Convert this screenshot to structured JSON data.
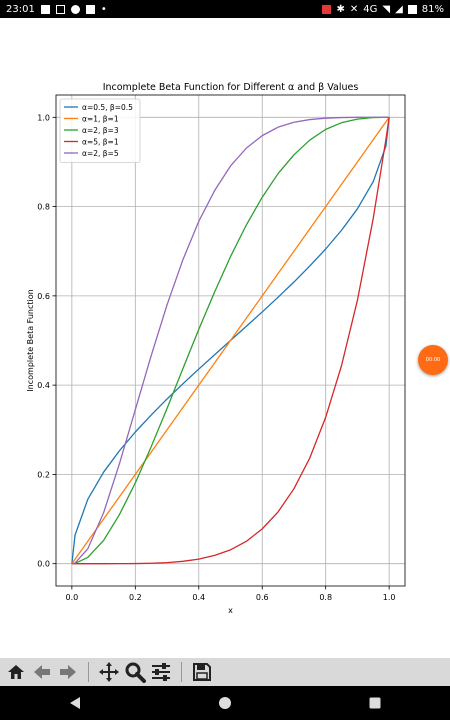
{
  "status_bar": {
    "time": "23:01",
    "battery": "81%",
    "network": "4G",
    "left_icons": [
      "facebook-icon",
      "gmail-icon",
      "youtube-icon",
      "file-icon",
      "dot-icon"
    ],
    "right_icons": [
      "nfc-icon",
      "bluetooth-icon",
      "mute-icon",
      "wifi-icon",
      "signal-icon",
      "battery-icon"
    ]
  },
  "fab": {
    "label": "00:00",
    "color": "#ff6a14"
  },
  "toolbar": {
    "buttons": [
      "home-icon",
      "back-arrow-icon",
      "forward-arrow-icon",
      "pan-icon",
      "zoom-icon",
      "configure-icon",
      "save-icon"
    ]
  },
  "nav_bar": {
    "buttons": [
      "back-triangle-icon",
      "home-circle-icon",
      "recents-square-icon"
    ]
  },
  "chart_data": {
    "type": "line",
    "title": "Incomplete Beta Function for Different α and β Values",
    "xlabel": "x",
    "ylabel": "Incomplete Beta Function",
    "xlim": [
      -0.05,
      1.05
    ],
    "ylim": [
      -0.05,
      1.05
    ],
    "xticks": [
      0.0,
      0.2,
      0.4,
      0.6,
      0.8,
      1.0
    ],
    "xtick_labels": [
      "0.0",
      "0.2",
      "0.4",
      "0.6",
      "0.8",
      "1.0"
    ],
    "yticks": [
      0.0,
      0.2,
      0.4,
      0.6,
      0.8,
      1.0
    ],
    "ytick_labels": [
      "0.0",
      "0.2",
      "0.4",
      "0.6",
      "0.8",
      "1.0"
    ],
    "grid": true,
    "legend_position": "top-left",
    "x": [
      0,
      0.01,
      0.05,
      0.1,
      0.15,
      0.2,
      0.25,
      0.3,
      0.35,
      0.4,
      0.45,
      0.5,
      0.55,
      0.6,
      0.65,
      0.7,
      0.75,
      0.8,
      0.85,
      0.9,
      0.95,
      0.99,
      1
    ],
    "series": [
      {
        "name": "α=0.5, β=0.5",
        "color": "#1f77b4",
        "values": [
          0,
          0.064,
          0.144,
          0.205,
          0.253,
          0.295,
          0.333,
          0.369,
          0.403,
          0.436,
          0.468,
          0.5,
          0.532,
          0.564,
          0.597,
          0.631,
          0.667,
          0.705,
          0.747,
          0.795,
          0.856,
          0.936,
          1
        ]
      },
      {
        "name": "α=1, β=1",
        "color": "#ff7f0e",
        "values": [
          0,
          0.01,
          0.05,
          0.1,
          0.15,
          0.2,
          0.25,
          0.3,
          0.35,
          0.4,
          0.45,
          0.5,
          0.55,
          0.6,
          0.65,
          0.7,
          0.75,
          0.8,
          0.85,
          0.9,
          0.95,
          0.99,
          1
        ]
      },
      {
        "name": "α=2, β=3",
        "color": "#2ca02c",
        "values": [
          0,
          0.0006,
          0.014,
          0.052,
          0.11,
          0.181,
          0.262,
          0.348,
          0.437,
          0.525,
          0.609,
          0.688,
          0.759,
          0.821,
          0.874,
          0.916,
          0.949,
          0.973,
          0.988,
          0.996,
          0.9995,
          1.0,
          1
        ]
      },
      {
        "name": "α=5, β=1",
        "color": "#d62728",
        "values": [
          0,
          0,
          0,
          1e-05,
          8e-05,
          0.00032,
          0.001,
          0.0024,
          0.0053,
          0.0102,
          0.0185,
          0.031,
          0.05,
          0.078,
          0.116,
          0.168,
          0.237,
          0.328,
          0.444,
          0.59,
          0.774,
          0.951,
          1
        ]
      },
      {
        "name": "α=2, β=5",
        "color": "#9467bd",
        "values": [
          0,
          0.0015,
          0.033,
          0.114,
          0.224,
          0.345,
          0.466,
          0.58,
          0.681,
          0.767,
          0.836,
          0.891,
          0.931,
          0.959,
          0.978,
          0.989,
          0.995,
          0.998,
          0.9995,
          1.0,
          1.0,
          1.0,
          1
        ]
      }
    ]
  }
}
